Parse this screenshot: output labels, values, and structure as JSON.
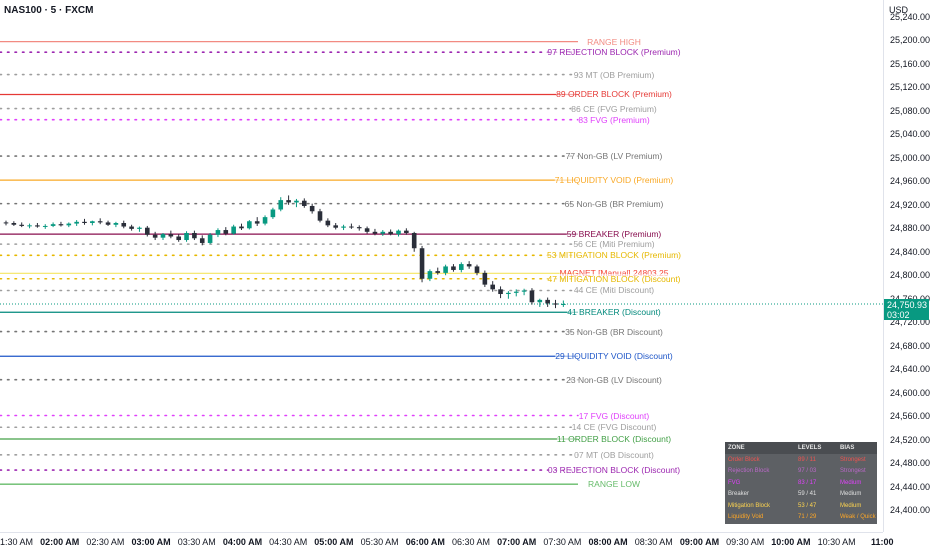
{
  "header": {
    "symbol": "NAS100 · 5 · FXCM",
    "currency": "USD"
  },
  "price_axis": {
    "ticks": [
      "25,240.00",
      "25,200.00",
      "25,160.00",
      "25,120.00",
      "25,080.00",
      "25,040.00",
      "25,000.00",
      "24,960.00",
      "24,920.00",
      "24,880.00",
      "24,840.00",
      "24,800.00",
      "24,760.00",
      "24,720.00",
      "24,680.00",
      "24,640.00",
      "24,600.00",
      "24,560.00",
      "24,520.00",
      "24,480.00",
      "24,440.00",
      "24,400.00"
    ],
    "current_price": "24,750.93",
    "countdown": "03:02",
    "current_color": "#089981"
  },
  "time_axis": {
    "ticks": [
      {
        "label": "01:30 AM",
        "hour": false
      },
      {
        "label": "02:00 AM",
        "hour": true
      },
      {
        "label": "02:30 AM",
        "hour": false
      },
      {
        "label": "03:00 AM",
        "hour": true
      },
      {
        "label": "03:30 AM",
        "hour": false
      },
      {
        "label": "04:00 AM",
        "hour": true
      },
      {
        "label": "04:30 AM",
        "hour": false
      },
      {
        "label": "05:00 AM",
        "hour": true
      },
      {
        "label": "05:30 AM",
        "hour": false
      },
      {
        "label": "06:00 AM",
        "hour": true
      },
      {
        "label": "06:30 AM",
        "hour": false
      },
      {
        "label": "07:00 AM",
        "hour": true
      },
      {
        "label": "07:30 AM",
        "hour": false
      },
      {
        "label": "08:00 AM",
        "hour": true
      },
      {
        "label": "08:30 AM",
        "hour": false
      },
      {
        "label": "09:00 AM",
        "hour": true
      },
      {
        "label": "09:30 AM",
        "hour": false
      },
      {
        "label": "10:00 AM",
        "hour": true
      },
      {
        "label": "10:30 AM",
        "hour": false
      },
      {
        "label": "11:00",
        "hour": true
      }
    ]
  },
  "levels": [
    {
      "label": "RANGE HIGH",
      "price": 25198,
      "color": "#f28b82",
      "style": "solid"
    },
    {
      "label": "97 REJECTION BLOCK (Premium)",
      "price": 25180,
      "color": "#9c27b0",
      "style": "dotted"
    },
    {
      "label": "93 MT (OB Premium)",
      "price": 25142,
      "color": "#9e9e9e",
      "style": "dotted"
    },
    {
      "label": "89 ORDER BLOCK (Premium)",
      "price": 25108,
      "color": "#e53935",
      "style": "solid"
    },
    {
      "label": "86 CE (FVG Premium)",
      "price": 25084,
      "color": "#9e9e9e",
      "style": "dotted"
    },
    {
      "label": "83 FVG (Premium)",
      "price": 25065,
      "color": "#e040fb",
      "style": "dotted"
    },
    {
      "label": "77 Non-GB (LV Premium)",
      "price": 25003,
      "color": "#757575",
      "style": "dotted"
    },
    {
      "label": "71 LIQUIDITY VOID (Premium)",
      "price": 24962,
      "color": "#f9a825",
      "style": "solid"
    },
    {
      "label": "65 Non-GB (BR Premium)",
      "price": 24922,
      "color": "#757575",
      "style": "dotted"
    },
    {
      "label": "59 BREAKER (Premium)",
      "price": 24870,
      "color": "#880e4f",
      "style": "solid"
    },
    {
      "label": "56 CE (Miti Premium)",
      "price": 24853,
      "color": "#9e9e9e",
      "style": "dotted"
    },
    {
      "label": "53 MITIGATION BLOCK (Premium)",
      "price": 24834,
      "color": "#e6b800",
      "style": "dotted"
    },
    {
      "label": "MAGNET [Manual] 24803.25",
      "price": 24803.25,
      "color": "#f44336",
      "style": "solid-yellow"
    },
    {
      "label": "47 MITIGATION BLOCK (Discount)",
      "price": 24794,
      "color": "#e6b800",
      "style": "dotted"
    },
    {
      "label": "44 CE (Miti Discount)",
      "price": 24774,
      "color": "#9e9e9e",
      "style": "dotted"
    },
    {
      "label": "41 BREAKER (Discount)",
      "price": 24737,
      "color": "#00897b",
      "style": "solid"
    },
    {
      "label": "35 Non-GB (BR Discount)",
      "price": 24704,
      "color": "#757575",
      "style": "dotted"
    },
    {
      "label": "29 LIQUIDITY VOID (Discount)",
      "price": 24662,
      "color": "#1e56c8",
      "style": "solid"
    },
    {
      "label": "23 Non-GB (LV Discount)",
      "price": 24622,
      "color": "#757575",
      "style": "dotted"
    },
    {
      "label": "17 FVG (Discount)",
      "price": 24561,
      "color": "#e040fb",
      "style": "dotted"
    },
    {
      "label": "14 CE (FVG Discount)",
      "price": 24541,
      "color": "#9e9e9e",
      "style": "dotted"
    },
    {
      "label": "11 ORDER BLOCK (Discount)",
      "price": 24521,
      "color": "#43a047",
      "style": "solid"
    },
    {
      "label": "07 MT (OB Discount)",
      "price": 24494,
      "color": "#9e9e9e",
      "style": "dotted"
    },
    {
      "label": "03 REJECTION BLOCK (Discount)",
      "price": 24468,
      "color": "#9c27b0",
      "style": "dotted"
    },
    {
      "label": "RANGE LOW",
      "price": 24444,
      "color": "#66bb6a",
      "style": "solid"
    }
  ],
  "chart_data": {
    "type": "candlestick",
    "ylim": [
      24380,
      25260
    ],
    "up_color": "#089981",
    "down_color": "#2a2e39",
    "candles": [
      [
        24890,
        24893,
        24885,
        24889
      ],
      [
        24889,
        24892,
        24884,
        24886
      ],
      [
        24886,
        24890,
        24882,
        24884
      ],
      [
        24884,
        24888,
        24880,
        24885
      ],
      [
        24885,
        24889,
        24881,
        24883
      ],
      [
        24883,
        24887,
        24879,
        24884
      ],
      [
        24884,
        24890,
        24882,
        24887
      ],
      [
        24887,
        24891,
        24883,
        24885
      ],
      [
        24885,
        24890,
        24882,
        24888
      ],
      [
        24888,
        24894,
        24884,
        24891
      ],
      [
        24891,
        24896,
        24886,
        24889
      ],
      [
        24889,
        24893,
        24885,
        24892
      ],
      [
        24892,
        24897,
        24887,
        24890
      ],
      [
        24890,
        24893,
        24884,
        24886
      ],
      [
        24886,
        24891,
        24882,
        24889
      ],
      [
        24889,
        24893,
        24880,
        24883
      ],
      [
        24883,
        24886,
        24876,
        24879
      ],
      [
        24879,
        24883,
        24874,
        24881
      ],
      [
        24881,
        24884,
        24866,
        24869
      ],
      [
        24869,
        24874,
        24860,
        24864
      ],
      [
        24864,
        24872,
        24860,
        24870
      ],
      [
        24870,
        24876,
        24863,
        24866
      ],
      [
        24866,
        24870,
        24857,
        24860
      ],
      [
        24860,
        24875,
        24857,
        24872
      ],
      [
        24872,
        24876,
        24860,
        24863
      ],
      [
        24863,
        24868,
        24851,
        24855
      ],
      [
        24855,
        24872,
        24853,
        24869
      ],
      [
        24869,
        24880,
        24865,
        24877
      ],
      [
        24877,
        24882,
        24868,
        24871
      ],
      [
        24871,
        24886,
        24869,
        24883
      ],
      [
        24883,
        24888,
        24877,
        24880
      ],
      [
        24880,
        24894,
        24878,
        24892
      ],
      [
        24892,
        24899,
        24884,
        24888
      ],
      [
        24888,
        24902,
        24885,
        24899
      ],
      [
        24899,
        24915,
        24896,
        24912
      ],
      [
        24912,
        24933,
        24909,
        24928
      ],
      [
        24928,
        24936,
        24920,
        24924
      ],
      [
        24924,
        24930,
        24916,
        24927
      ],
      [
        24927,
        24931,
        24915,
        24918
      ],
      [
        24918,
        24922,
        24905,
        24909
      ],
      [
        24909,
        24913,
        24890,
        24893
      ],
      [
        24893,
        24897,
        24882,
        24885
      ],
      [
        24885,
        24889,
        24878,
        24881
      ],
      [
        24881,
        24886,
        24877,
        24883
      ],
      [
        24883,
        24888,
        24879,
        24882
      ],
      [
        24882,
        24885,
        24876,
        24880
      ],
      [
        24880,
        24883,
        24871,
        24874
      ],
      [
        24874,
        24879,
        24868,
        24871
      ],
      [
        24871,
        24877,
        24867,
        24874
      ],
      [
        24874,
        24878,
        24868,
        24870
      ],
      [
        24870,
        24878,
        24866,
        24876
      ],
      [
        24876,
        24880,
        24869,
        24872
      ],
      [
        24872,
        24874,
        24840,
        24846
      ],
      [
        24846,
        24850,
        24788,
        24794
      ],
      [
        24794,
        24810,
        24790,
        24807
      ],
      [
        24807,
        24813,
        24801,
        24804
      ],
      [
        24804,
        24818,
        24800,
        24815
      ],
      [
        24815,
        24819,
        24806,
        24809
      ],
      [
        24809,
        24822,
        24805,
        24819
      ],
      [
        24819,
        24824,
        24811,
        24815
      ],
      [
        24815,
        24818,
        24800,
        24804
      ],
      [
        24804,
        24808,
        24780,
        24784
      ],
      [
        24784,
        24790,
        24772,
        24776
      ],
      [
        24776,
        24781,
        24761,
        24768
      ],
      [
        24768,
        24773,
        24760,
        24770
      ],
      [
        24770,
        24776,
        24764,
        24772
      ],
      [
        24772,
        24777,
        24766,
        24774
      ],
      [
        24774,
        24778,
        24750,
        24754
      ],
      [
        24754,
        24760,
        24746,
        24758
      ],
      [
        24758,
        24762,
        24746,
        24752
      ],
      [
        24752,
        24758,
        24744,
        24750
      ],
      [
        24750,
        24757,
        24746,
        24751
      ]
    ]
  },
  "zone_table": {
    "headers": [
      "ZONE",
      "LEVELS",
      "BIAS"
    ],
    "rows": [
      {
        "zone": "Order Block",
        "levels": "89 / 11",
        "bias": "Strongest",
        "color": "#ef5350"
      },
      {
        "zone": "Rejection Block",
        "levels": "97 / 03",
        "bias": "Strongest",
        "color": "#ba68c8"
      },
      {
        "zone": "FVG",
        "levels": "83 / 17",
        "bias": "Medium",
        "color": "#e040fb"
      },
      {
        "zone": "Breaker",
        "levels": "59 / 41",
        "bias": "Medium",
        "color": "#e0e0e0"
      },
      {
        "zone": "Mitigation Block",
        "levels": "53 / 47",
        "bias": "Medium",
        "color": "#ffd54f"
      },
      {
        "zone": "Liquidity Void",
        "levels": "71 / 29",
        "bias": "Weak / Quick",
        "color": "#ffa726"
      }
    ]
  }
}
